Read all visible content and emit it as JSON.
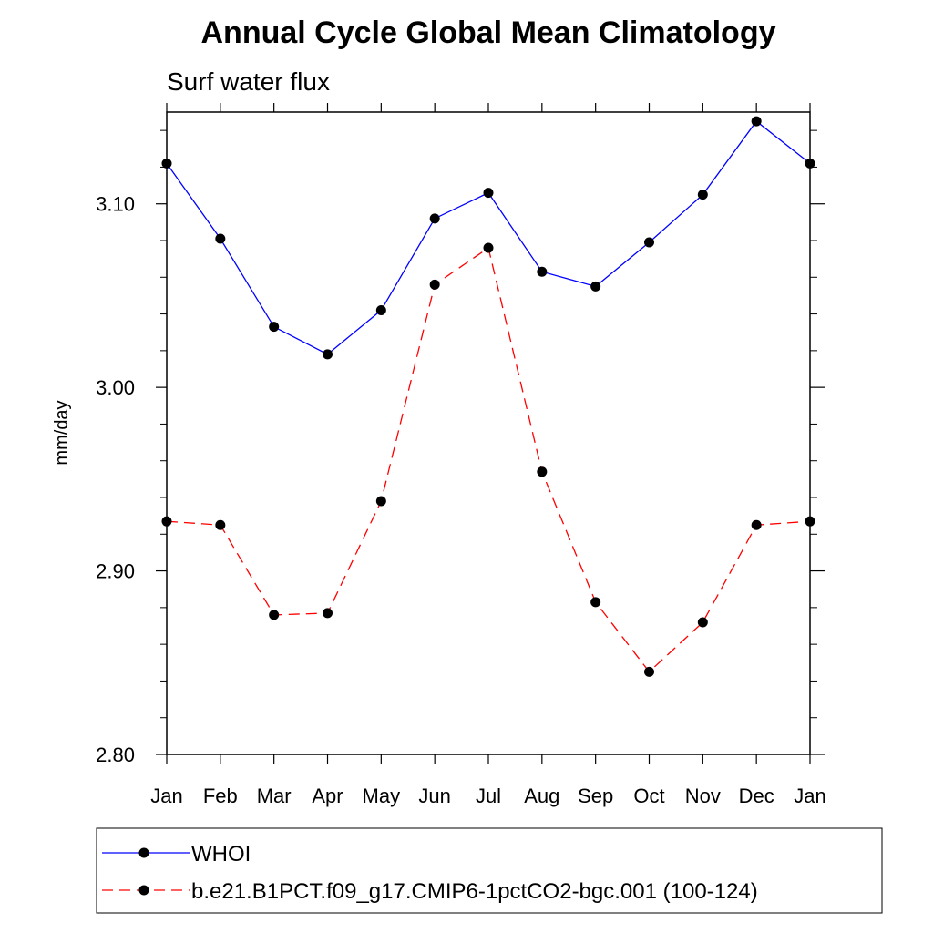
{
  "chart_data": {
    "type": "line",
    "title": "Annual Cycle Global Mean Climatology",
    "subtitle": "Surf water flux",
    "xlabel": "",
    "ylabel": "mm/day",
    "ylim": [
      2.8,
      3.15
    ],
    "yticks": [
      2.8,
      2.9,
      3.0,
      3.1
    ],
    "ytick_labels": [
      "2.80",
      "2.90",
      "3.00",
      "3.10"
    ],
    "categories": [
      "Jan",
      "Feb",
      "Mar",
      "Apr",
      "May",
      "Jun",
      "Jul",
      "Aug",
      "Sep",
      "Oct",
      "Nov",
      "Dec",
      "Jan"
    ],
    "legend_position": "bottom",
    "grid": false,
    "series": [
      {
        "name": "WHOI",
        "color": "#0000ff",
        "dash": "solid",
        "values": [
          3.122,
          3.081,
          3.033,
          3.018,
          3.042,
          3.092,
          3.106,
          3.063,
          3.055,
          3.079,
          3.105,
          3.145,
          3.122
        ]
      },
      {
        "name": "b.e21.B1PCT.f09_g17.CMIP6-1pctCO2-bgc.001 (100-124)",
        "color": "#ff0000",
        "dash": "dashed",
        "values": [
          2.927,
          2.925,
          2.876,
          2.877,
          2.938,
          3.056,
          3.076,
          2.954,
          2.883,
          2.845,
          2.872,
          2.925,
          2.927
        ]
      }
    ]
  }
}
